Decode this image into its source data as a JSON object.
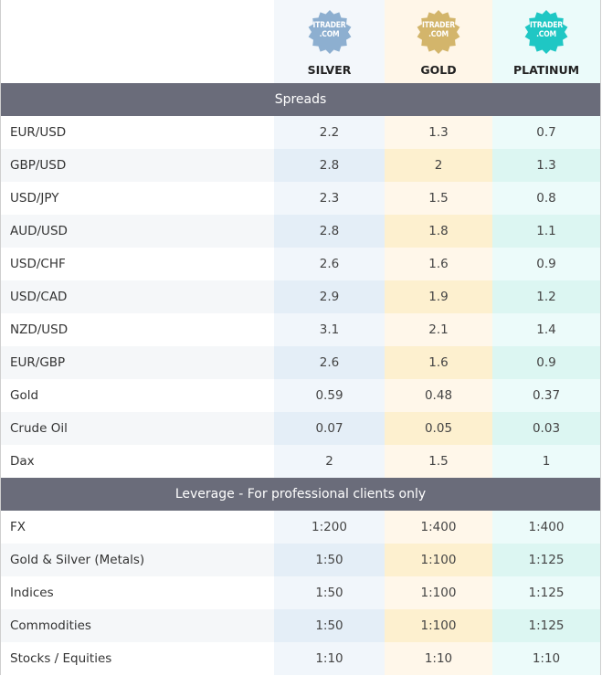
{
  "tiers": [
    {
      "name": "SILVER",
      "badge_line1": "ITRADER",
      "badge_line2": ".COM",
      "color": "#8dafd0"
    },
    {
      "name": "GOLD",
      "badge_line1": "ITRADER",
      "badge_line2": ".COM",
      "color": "#d3b56b"
    },
    {
      "name": "PLATINUM",
      "badge_line1": "ITRADER",
      "badge_line2": ".COM",
      "color": "#1fc7c4"
    }
  ],
  "spreads": {
    "title": "Spreads",
    "rows": [
      {
        "label": "EUR/USD",
        "values": [
          "2.2",
          "1.3",
          "0.7"
        ]
      },
      {
        "label": "GBP/USD",
        "values": [
          "2.8",
          "2",
          "1.3"
        ]
      },
      {
        "label": "USD/JPY",
        "values": [
          "2.3",
          "1.5",
          "0.8"
        ]
      },
      {
        "label": "AUD/USD",
        "values": [
          "2.8",
          "1.8",
          "1.1"
        ]
      },
      {
        "label": "USD/CHF",
        "values": [
          "2.6",
          "1.6",
          "0.9"
        ]
      },
      {
        "label": "USD/CAD",
        "values": [
          "2.9",
          "1.9",
          "1.2"
        ]
      },
      {
        "label": "NZD/USD",
        "values": [
          "3.1",
          "2.1",
          "1.4"
        ]
      },
      {
        "label": "EUR/GBP",
        "values": [
          "2.6",
          "1.6",
          "0.9"
        ]
      },
      {
        "label": "Gold",
        "values": [
          "0.59",
          "0.48",
          "0.37"
        ]
      },
      {
        "label": "Crude Oil",
        "values": [
          "0.07",
          "0.05",
          "0.03"
        ]
      },
      {
        "label": "Dax",
        "values": [
          "2",
          "1.5",
          "1"
        ]
      }
    ]
  },
  "leverage": {
    "title": "Leverage - For professional clients only",
    "rows": [
      {
        "label": "FX",
        "values": [
          "1:200",
          "1:400",
          "1:400"
        ]
      },
      {
        "label": "Gold & Silver (Metals)",
        "values": [
          "1:50",
          "1:100",
          "1:125"
        ]
      },
      {
        "label": "Indices",
        "values": [
          "1:50",
          "1:100",
          "1:125"
        ]
      },
      {
        "label": "Commodities",
        "values": [
          "1:50",
          "1:100",
          "1:125"
        ]
      },
      {
        "label": "Stocks / Equities",
        "values": [
          "1:10",
          "1:10",
          "1:10"
        ]
      }
    ]
  }
}
